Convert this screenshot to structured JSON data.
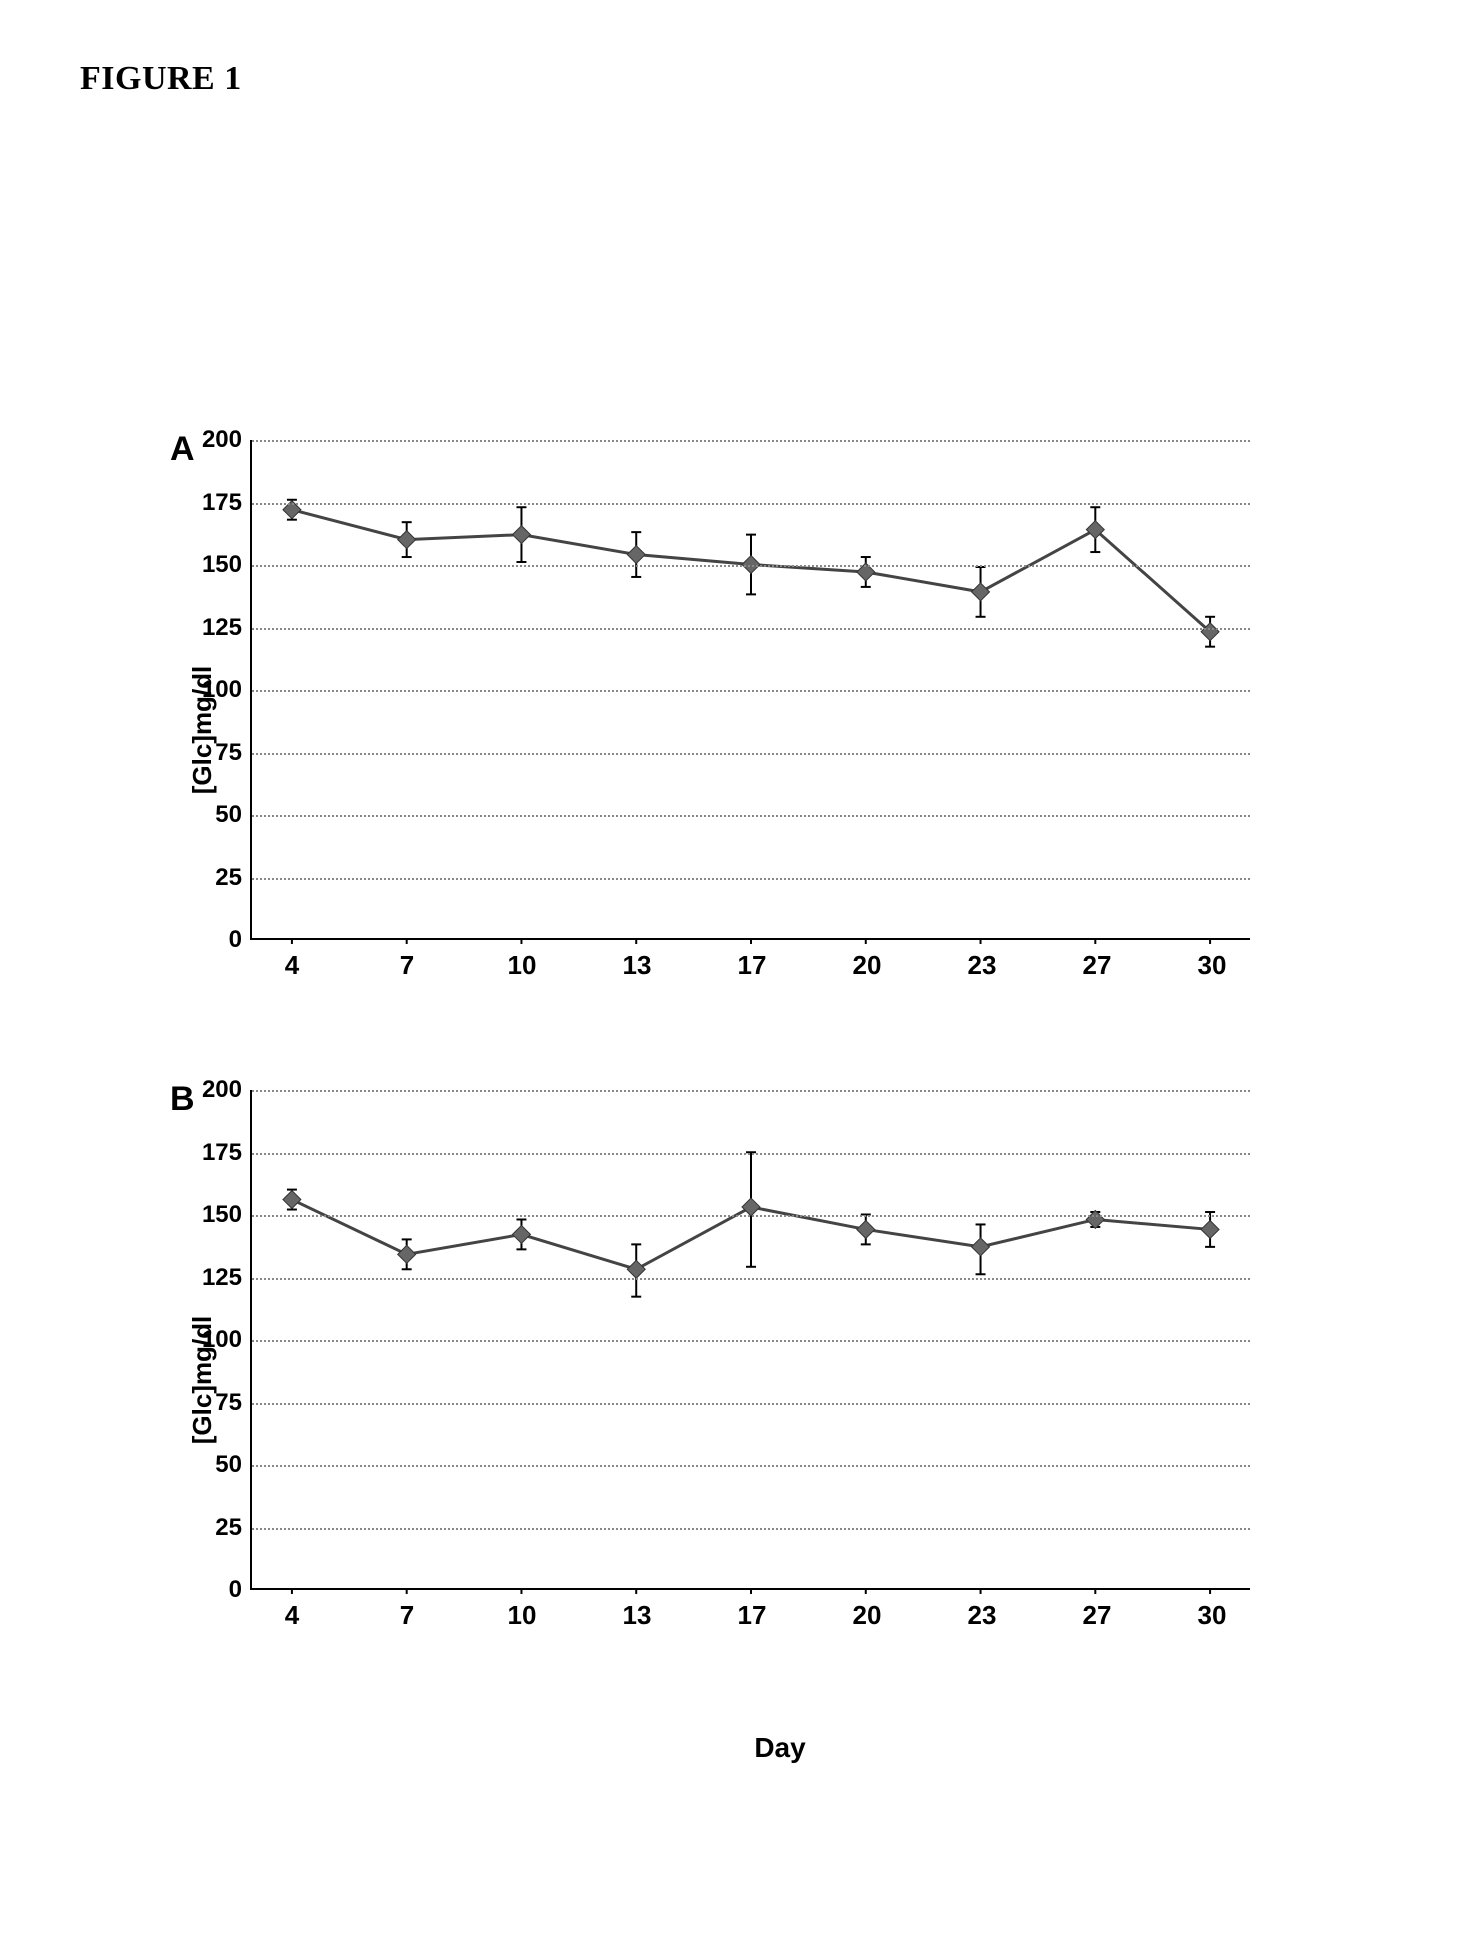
{
  "figure_title": "FIGURE 1",
  "shared_x_label": "Day",
  "panels": {
    "A": {
      "panel_label": "A",
      "y_label": "[Glc]mg/dl",
      "type": "line",
      "ylim": [
        0,
        200
      ],
      "ytick_step": 25,
      "y_ticks": [
        0,
        25,
        50,
        75,
        100,
        125,
        150,
        175,
        200
      ],
      "x_categories": [
        "4",
        "7",
        "10",
        "13",
        "17",
        "20",
        "23",
        "27",
        "30"
      ],
      "values": [
        172,
        160,
        162,
        154,
        150,
        147,
        139,
        164,
        123
      ],
      "err_low": [
        4,
        7,
        11,
        9,
        12,
        6,
        10,
        9,
        6
      ],
      "err_high": [
        4,
        7,
        11,
        9,
        12,
        6,
        10,
        9,
        6
      ],
      "line_color": "#444444",
      "marker_fill": "#666666",
      "marker_stroke": "#333333",
      "marker_size": 9,
      "line_width": 3,
      "error_cap_width": 10,
      "error_line_width": 2,
      "grid_color": "#888888",
      "grid_style": "dotted",
      "background_color": "#ffffff",
      "label_fontsize": 26,
      "tick_fontsize": 24,
      "show_x_axis_label": false
    },
    "B": {
      "panel_label": "B",
      "y_label": "[Glc]mg/dl",
      "type": "line",
      "ylim": [
        0,
        200
      ],
      "ytick_step": 25,
      "y_ticks": [
        0,
        25,
        50,
        75,
        100,
        125,
        150,
        175,
        200
      ],
      "x_categories": [
        "4",
        "7",
        "10",
        "13",
        "17",
        "20",
        "23",
        "27",
        "30"
      ],
      "values": [
        156,
        134,
        142,
        128,
        153,
        144,
        137,
        148,
        144
      ],
      "err_low": [
        4,
        6,
        6,
        11,
        24,
        6,
        11,
        3,
        7
      ],
      "err_high": [
        4,
        6,
        6,
        10,
        22,
        6,
        9,
        3,
        7
      ],
      "line_color": "#444444",
      "marker_fill": "#666666",
      "marker_stroke": "#333333",
      "marker_size": 9,
      "line_width": 3,
      "error_cap_width": 10,
      "error_line_width": 2,
      "grid_color": "#888888",
      "grid_style": "dotted",
      "background_color": "#ffffff",
      "label_fontsize": 26,
      "tick_fontsize": 24,
      "show_x_axis_label": true
    }
  }
}
